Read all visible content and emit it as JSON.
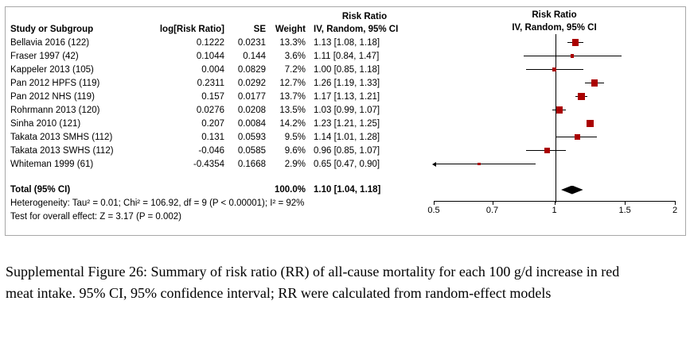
{
  "figure": {
    "risk_ratio_label": "Risk Ratio",
    "columns": {
      "study": "Study or Subgroup",
      "log_rr": "log[Risk Ratio]",
      "se": "SE",
      "weight": "Weight",
      "ci": "IV, Random, 95% CI"
    }
  },
  "chart_data": {
    "type": "forest",
    "effect_measure": "Risk Ratio",
    "model": "IV, Random, 95% CI",
    "x_scale": "log",
    "x_range": [
      0.5,
      2
    ],
    "x_ticks": [
      0.5,
      0.7,
      1,
      1.5,
      2
    ],
    "x_tick_labels": [
      "0.5",
      "0.7",
      "1",
      "1.5",
      "2"
    ],
    "marker_color": "#AA0000",
    "diamond_color": "#000000",
    "studies": [
      {
        "name": "Bellavia 2016 (122)",
        "log_rr": "0.1222",
        "se": "0.0231",
        "weight": 13.3,
        "weight_label": "13.3%",
        "rr": 1.13,
        "low": 1.08,
        "high": 1.18,
        "ci_label": "1.13 [1.08, 1.18]"
      },
      {
        "name": "Fraser 1997 (42)",
        "log_rr": "0.1044",
        "se": "0.144",
        "weight": 3.6,
        "weight_label": "3.6%",
        "rr": 1.11,
        "low": 0.84,
        "high": 1.47,
        "ci_label": "1.11 [0.84, 1.47]"
      },
      {
        "name": "Kappeler 2013 (105)",
        "log_rr": "0.004",
        "se": "0.0829",
        "weight": 7.2,
        "weight_label": "7.2%",
        "rr": 1.0,
        "low": 0.85,
        "high": 1.18,
        "ci_label": "1.00 [0.85, 1.18]"
      },
      {
        "name": "Pan 2012 HPFS (119)",
        "log_rr": "0.2311",
        "se": "0.0292",
        "weight": 12.7,
        "weight_label": "12.7%",
        "rr": 1.26,
        "low": 1.19,
        "high": 1.33,
        "ci_label": "1.26 [1.19, 1.33]"
      },
      {
        "name": "Pan 2012 NHS (119)",
        "log_rr": "0.157",
        "se": "0.0177",
        "weight": 13.7,
        "weight_label": "13.7%",
        "rr": 1.17,
        "low": 1.13,
        "high": 1.21,
        "ci_label": "1.17 [1.13, 1.21]"
      },
      {
        "name": "Rohrmann 2013 (120)",
        "log_rr": "0.0276",
        "se": "0.0208",
        "weight": 13.5,
        "weight_label": "13.5%",
        "rr": 1.03,
        "low": 0.99,
        "high": 1.07,
        "ci_label": "1.03 [0.99, 1.07]"
      },
      {
        "name": "Sinha 2010 (121)",
        "log_rr": "0.207",
        "se": "0.0084",
        "weight": 14.2,
        "weight_label": "14.2%",
        "rr": 1.23,
        "low": 1.21,
        "high": 1.25,
        "ci_label": "1.23 [1.21, 1.25]"
      },
      {
        "name": "Takata 2013 SMHS (112)",
        "log_rr": "0.131",
        "se": "0.0593",
        "weight": 9.5,
        "weight_label": "9.5%",
        "rr": 1.14,
        "low": 1.01,
        "high": 1.28,
        "ci_label": "1.14 [1.01, 1.28]"
      },
      {
        "name": "Takata 2013 SWHS (112)",
        "log_rr": "-0.046",
        "se": "0.0585",
        "weight": 9.6,
        "weight_label": "9.6%",
        "rr": 0.96,
        "low": 0.85,
        "high": 1.07,
        "ci_label": "0.96 [0.85, 1.07]"
      },
      {
        "name": "Whiteman 1999 (61)",
        "log_rr": "-0.4354",
        "se": "0.1668",
        "weight": 2.9,
        "weight_label": "2.9%",
        "rr": 0.65,
        "low": 0.47,
        "high": 0.9,
        "ci_label": "0.65 [0.47, 0.90]"
      }
    ],
    "total": {
      "name": "Total (95% CI)",
      "weight_label": "100.0%",
      "rr": 1.1,
      "low": 1.04,
      "high": 1.18,
      "ci_label": "1.10 [1.04, 1.18]"
    },
    "heterogeneity": "Heterogeneity: Tau² = 0.01; Chi² = 106.92, df = 9 (P < 0.00001); I² = 92%",
    "overall_effect": "Test for overall effect: Z = 3.17 (P = 0.002)"
  },
  "caption": "Supplemental Figure 26: Summary of risk ratio (RR) of all-cause mortality for each 100 g/d increase in red meat intake. 95% CI, 95% confidence interval; RR were calculated from random-effect models"
}
